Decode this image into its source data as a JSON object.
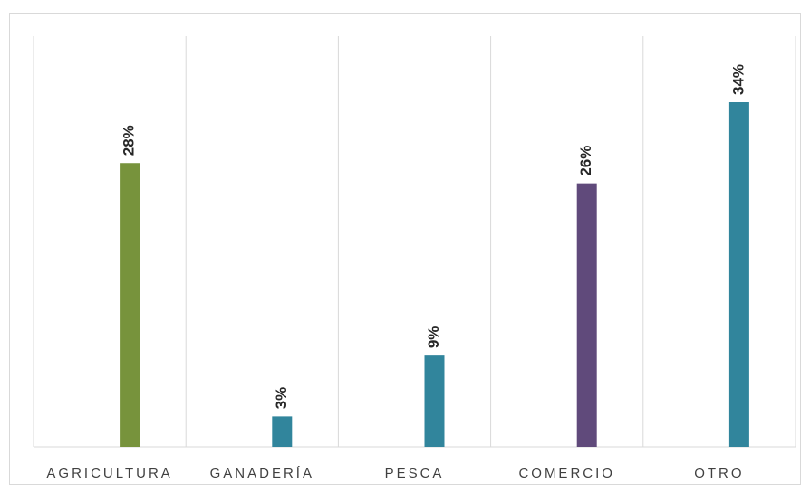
{
  "chart_data": {
    "type": "bar",
    "categories": [
      "AGRICULTURA",
      "GANADERÍA",
      "PESCA",
      "COMERCIO",
      "OTRO"
    ],
    "values": [
      28,
      3,
      9,
      26,
      34
    ],
    "value_labels": [
      "28%",
      "3%",
      "9%",
      "26%",
      "34%"
    ],
    "colors": [
      "#77933c",
      "#31859c",
      "#31859c",
      "#604a7b",
      "#31859c"
    ]
  }
}
